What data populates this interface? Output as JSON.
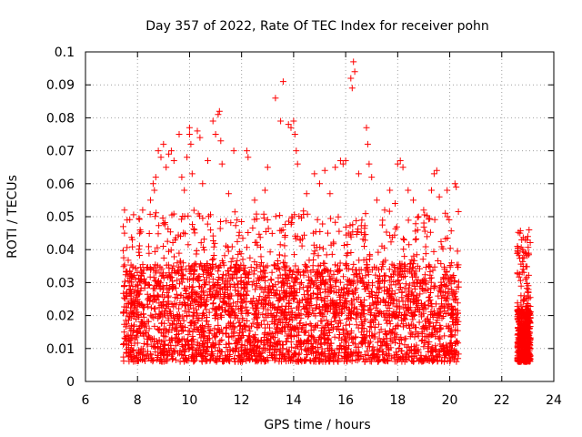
{
  "chart_data": {
    "type": "scatter",
    "title": "Day 357 of 2022, Rate Of TEC Index for receiver pohn",
    "xlabel": "GPS time / hours",
    "ylabel": "ROTI / TECUs",
    "xlim": [
      6,
      24
    ],
    "ylim": [
      0,
      0.1
    ],
    "xticks": [
      "6",
      "8",
      "10",
      "12",
      "14",
      "16",
      "18",
      "20",
      "22",
      "24"
    ],
    "yticks": [
      "0",
      "0.01",
      "0.02",
      "0.03",
      "0.04",
      "0.05",
      "0.06",
      "0.07",
      "0.08",
      "0.09",
      "0.1"
    ],
    "grid": true,
    "marker": "+",
    "color": "#ff0000",
    "series": [
      {
        "name": "ROTI",
        "description": "Dense ROTI samples from ~7.4 h to ~20.3 h, gap, then cluster ~22.6-23.1 h",
        "points": [
          [
            7.45,
            0.047
          ],
          [
            7.5,
            0.045
          ],
          [
            7.5,
            0.052
          ],
          [
            7.6,
            0.049
          ],
          [
            7.8,
            0.043
          ],
          [
            8.1,
            0.046
          ],
          [
            8.2,
            0.052
          ],
          [
            8.5,
            0.055
          ],
          [
            8.6,
            0.06
          ],
          [
            8.65,
            0.058
          ],
          [
            8.7,
            0.062
          ],
          [
            8.8,
            0.07
          ],
          [
            8.9,
            0.068
          ],
          [
            9.0,
            0.072
          ],
          [
            9.1,
            0.065
          ],
          [
            9.2,
            0.069
          ],
          [
            9.3,
            0.07
          ],
          [
            9.4,
            0.067
          ],
          [
            9.6,
            0.075
          ],
          [
            9.7,
            0.062
          ],
          [
            9.8,
            0.058
          ],
          [
            9.9,
            0.068
          ],
          [
            10.0,
            0.075
          ],
          [
            10.0,
            0.077
          ],
          [
            10.05,
            0.072
          ],
          [
            10.1,
            0.063
          ],
          [
            10.3,
            0.076
          ],
          [
            10.4,
            0.074
          ],
          [
            10.5,
            0.06
          ],
          [
            10.7,
            0.067
          ],
          [
            10.9,
            0.079
          ],
          [
            11.0,
            0.075
          ],
          [
            11.1,
            0.081
          ],
          [
            11.15,
            0.082
          ],
          [
            11.2,
            0.073
          ],
          [
            11.25,
            0.066
          ],
          [
            11.5,
            0.057
          ],
          [
            11.7,
            0.07
          ],
          [
            12.2,
            0.07
          ],
          [
            12.25,
            0.068
          ],
          [
            12.5,
            0.055
          ],
          [
            12.9,
            0.058
          ],
          [
            13.0,
            0.065
          ],
          [
            13.3,
            0.086
          ],
          [
            13.5,
            0.079
          ],
          [
            13.6,
            0.091
          ],
          [
            13.8,
            0.078
          ],
          [
            13.9,
            0.077
          ],
          [
            14.0,
            0.079
          ],
          [
            14.05,
            0.075
          ],
          [
            14.1,
            0.07
          ],
          [
            14.15,
            0.066
          ],
          [
            14.5,
            0.057
          ],
          [
            14.8,
            0.063
          ],
          [
            15.0,
            0.06
          ],
          [
            15.2,
            0.064
          ],
          [
            15.4,
            0.057
          ],
          [
            15.6,
            0.065
          ],
          [
            15.8,
            0.067
          ],
          [
            15.9,
            0.066
          ],
          [
            16.0,
            0.067
          ],
          [
            16.2,
            0.092
          ],
          [
            16.25,
            0.089
          ],
          [
            16.3,
            0.097
          ],
          [
            16.35,
            0.094
          ],
          [
            16.5,
            0.063
          ],
          [
            16.8,
            0.077
          ],
          [
            16.85,
            0.072
          ],
          [
            16.9,
            0.066
          ],
          [
            17.0,
            0.062
          ],
          [
            17.2,
            0.055
          ],
          [
            17.5,
            0.052
          ],
          [
            17.7,
            0.058
          ],
          [
            17.9,
            0.054
          ],
          [
            18.0,
            0.066
          ],
          [
            18.1,
            0.067
          ],
          [
            18.2,
            0.065
          ],
          [
            18.4,
            0.058
          ],
          [
            18.6,
            0.055
          ],
          [
            18.8,
            0.05
          ],
          [
            19.0,
            0.052
          ],
          [
            19.3,
            0.058
          ],
          [
            19.4,
            0.063
          ],
          [
            19.5,
            0.064
          ],
          [
            19.6,
            0.056
          ],
          [
            19.9,
            0.058
          ],
          [
            20.2,
            0.06
          ],
          [
            20.25,
            0.059
          ],
          [
            22.7,
            0.045
          ],
          [
            22.8,
            0.04
          ],
          [
            22.9,
            0.043
          ],
          [
            23.0,
            0.044
          ],
          [
            23.05,
            0.046
          ]
        ]
      }
    ],
    "bulk_generation": {
      "segments": [
        {
          "x_start": 7.45,
          "x_end": 20.35,
          "y_base": 0.006,
          "y_spread": 0.03,
          "count": 2600
        },
        {
          "x_start": 7.45,
          "x_end": 20.35,
          "y_base": 0.02,
          "y_spread": 0.032,
          "count": 700
        },
        {
          "x_start": 22.6,
          "x_end": 23.1,
          "y_base": 0.006,
          "y_spread": 0.016,
          "count": 450
        },
        {
          "x_start": 22.6,
          "x_end": 23.1,
          "y_base": 0.02,
          "y_spread": 0.026,
          "count": 80
        }
      ]
    }
  }
}
